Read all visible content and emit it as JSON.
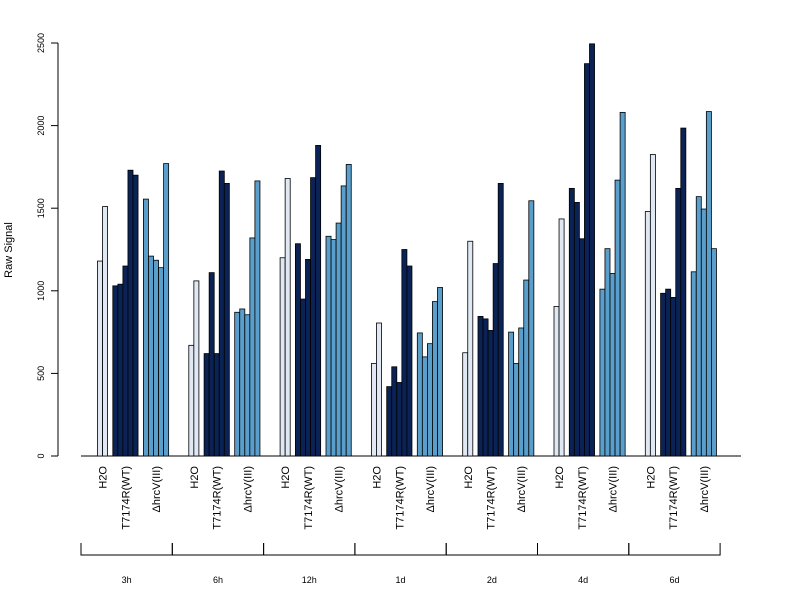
{
  "chart_data": {
    "type": "bar",
    "ylabel": "Raw Signal",
    "ylim": [
      0,
      2500
    ],
    "yticks": [
      "0",
      "500",
      "1000",
      "1500",
      "2000",
      "2500"
    ],
    "treatment_labels": [
      "H2O",
      "T7174R(WT)",
      "ΔhrcV(III)"
    ],
    "colors": {
      "H2O": "#dfe8f3",
      "T7174R(WT)": "#0b2354",
      "ΔhrcV(III)": "#5a9fcc"
    },
    "groups": [
      {
        "label": "3h",
        "H2O": [
          1180,
          1510
        ],
        "T7174R(WT)": [
          1030,
          1040,
          1150,
          1730,
          1700
        ],
        "ΔhrcV(III)": [
          1555,
          1210,
          1185,
          1140,
          1770
        ]
      },
      {
        "label": "6h",
        "H2O": [
          670,
          1060
        ],
        "T7174R(WT)": [
          620,
          1110,
          620,
          1725,
          1650
        ],
        "ΔhrcV(III)": [
          870,
          890,
          855,
          1320,
          1665
        ]
      },
      {
        "label": "12h",
        "H2O": [
          1200,
          1680
        ],
        "T7174R(WT)": [
          1285,
          950,
          1190,
          1685,
          1880
        ],
        "ΔhrcV(III)": [
          1330,
          1310,
          1410,
          1635,
          1765
        ]
      },
      {
        "label": "1d",
        "H2O": [
          560,
          805
        ],
        "T7174R(WT)": [
          420,
          540,
          445,
          1250,
          1150
        ],
        "ΔhrcV(III)": [
          745,
          600,
          680,
          935,
          1020
        ]
      },
      {
        "label": "2d",
        "H2O": [
          625,
          1300
        ],
        "T7174R(WT)": [
          845,
          830,
          760,
          1165,
          1650
        ],
        "ΔhrcV(III)": [
          750,
          560,
          775,
          1065,
          1545
        ]
      },
      {
        "label": "4d",
        "H2O": [
          905,
          1435
        ],
        "T7174R(WT)": [
          1620,
          1535,
          1315,
          2375,
          2495
        ],
        "ΔhrcV(III)": [
          1010,
          1255,
          1105,
          1670,
          2080
        ]
      },
      {
        "label": "6d",
        "H2O": [
          1480,
          1825
        ],
        "T7174R(WT)": [
          985,
          1010,
          960,
          1620,
          1985
        ],
        "ΔhrcV(III)": [
          1115,
          1570,
          1495,
          2085,
          1255
        ]
      }
    ]
  }
}
